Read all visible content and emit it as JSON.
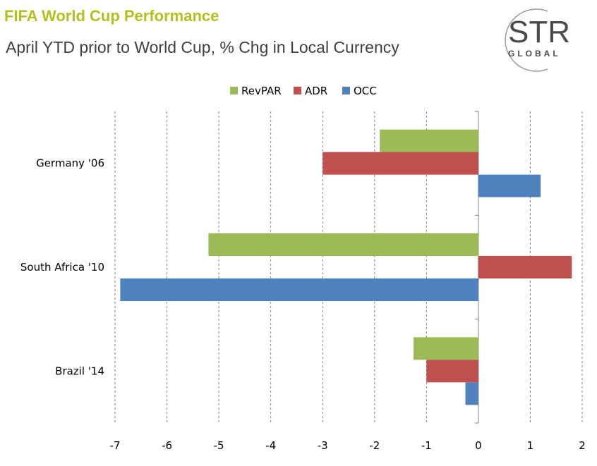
{
  "header": {
    "title": "FIFA World Cup Performance",
    "subtitle": "April YTD prior to World Cup, % Chg in Local Currency"
  },
  "logo": {
    "text": "STR",
    "subtext": "GLOBAL"
  },
  "colors": {
    "title": "#b3bf1e",
    "RevPAR": "#9bbb59",
    "ADR": "#c0504d",
    "OCC": "#4f81bd"
  },
  "chart_data": {
    "type": "bar",
    "orientation": "horizontal",
    "title": "FIFA World Cup Performance",
    "subtitle": "April YTD prior to World Cup, % Chg in Local Currency",
    "categories": [
      "Germany '06",
      "South Africa '10",
      "Brazil '14"
    ],
    "series": [
      {
        "name": "RevPAR",
        "values": [
          -1.9,
          -5.2,
          -1.25
        ]
      },
      {
        "name": "ADR",
        "values": [
          -3.0,
          1.8,
          -1.0
        ]
      },
      {
        "name": "OCC",
        "values": [
          1.2,
          -6.9,
          -0.25
        ]
      }
    ],
    "xlim": [
      -7,
      2
    ],
    "xticks": [
      "-7",
      "-6",
      "-5",
      "-4",
      "-3",
      "-2",
      "-1",
      "0",
      "1",
      "2"
    ],
    "grid": "vertical dashed",
    "legend_position": "top"
  }
}
